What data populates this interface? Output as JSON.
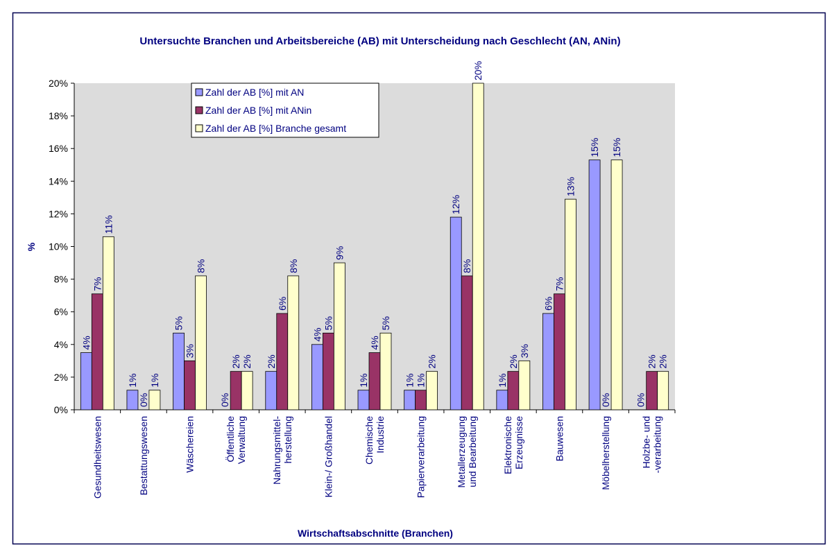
{
  "chart_data": {
    "type": "bar",
    "title": "Untersuchte Branchen und Arbeitsbereiche (AB) mit Unterscheidung nach Geschlecht (AN, ANin)",
    "x_label": "Wirtschaftsabschnitte (Branchen)",
    "y_label": "%",
    "categories": [
      "Gesundheitswesen",
      "Bestattungswesen",
      "Wäschereien",
      "Öffentliche\nVerwaltung",
      "Nahrungsmittel-\nherstellung",
      "Klein-/ Großhandel",
      "Chemische\nIndustrie",
      "Papierverarbeitung",
      "Metallerzeugung\nund Bearbeitung",
      "Elektronische\nErzeugnisse",
      "Bauwesen",
      "Möbelherstellung",
      "Holzbe- und\n-verarbeitung"
    ],
    "series": [
      {
        "name": "Zahl der AB [%] mit AN",
        "color": "#9999ff",
        "values": [
          3.5,
          1.2,
          4.7,
          0,
          2.35,
          4.0,
          1.2,
          1.2,
          11.8,
          1.2,
          5.9,
          15.3,
          0
        ],
        "value_labels": [
          "4%",
          "1%",
          "5%",
          "0%",
          "2%",
          "4%",
          "1%",
          "1%",
          "12%",
          "1%",
          "6%",
          "15%",
          "0%"
        ]
      },
      {
        "name": "Zahl der AB [%] mit ANin",
        "color": "#993366",
        "values": [
          7.1,
          0,
          3.0,
          2.35,
          5.9,
          4.7,
          3.5,
          1.2,
          8.2,
          2.35,
          7.1,
          0,
          2.35
        ],
        "value_labels": [
          "7%",
          "0%",
          "3%",
          "2%",
          "6%",
          "5%",
          "4%",
          "1%",
          "8%",
          "2%",
          "7%",
          "0%",
          "2%"
        ]
      },
      {
        "name": "Zahl der AB [%] Branche gesamt",
        "color": "#ffffcc",
        "values": [
          10.6,
          1.2,
          8.2,
          2.35,
          8.2,
          9.0,
          4.7,
          2.35,
          20.0,
          3.0,
          12.9,
          15.3,
          2.35
        ],
        "value_labels": [
          "11%",
          "1%",
          "8%",
          "2%",
          "8%",
          "9%",
          "5%",
          "2%",
          "20%",
          "3%",
          "13%",
          "15%",
          "2%"
        ]
      }
    ],
    "ylim": [
      0,
      20
    ],
    "yticks": [
      {
        "value": 0,
        "label": "0%"
      },
      {
        "value": 2,
        "label": "2%"
      },
      {
        "value": 4,
        "label": "4%"
      },
      {
        "value": 6,
        "label": "6%"
      },
      {
        "value": 8,
        "label": "8%"
      },
      {
        "value": 10,
        "label": "10%"
      },
      {
        "value": 12,
        "label": "12%"
      },
      {
        "value": 14,
        "label": "14%"
      },
      {
        "value": 16,
        "label": "16%"
      },
      {
        "value": 18,
        "label": "18%"
      },
      {
        "value": 20,
        "label": "20%"
      }
    ],
    "grid": false
  }
}
